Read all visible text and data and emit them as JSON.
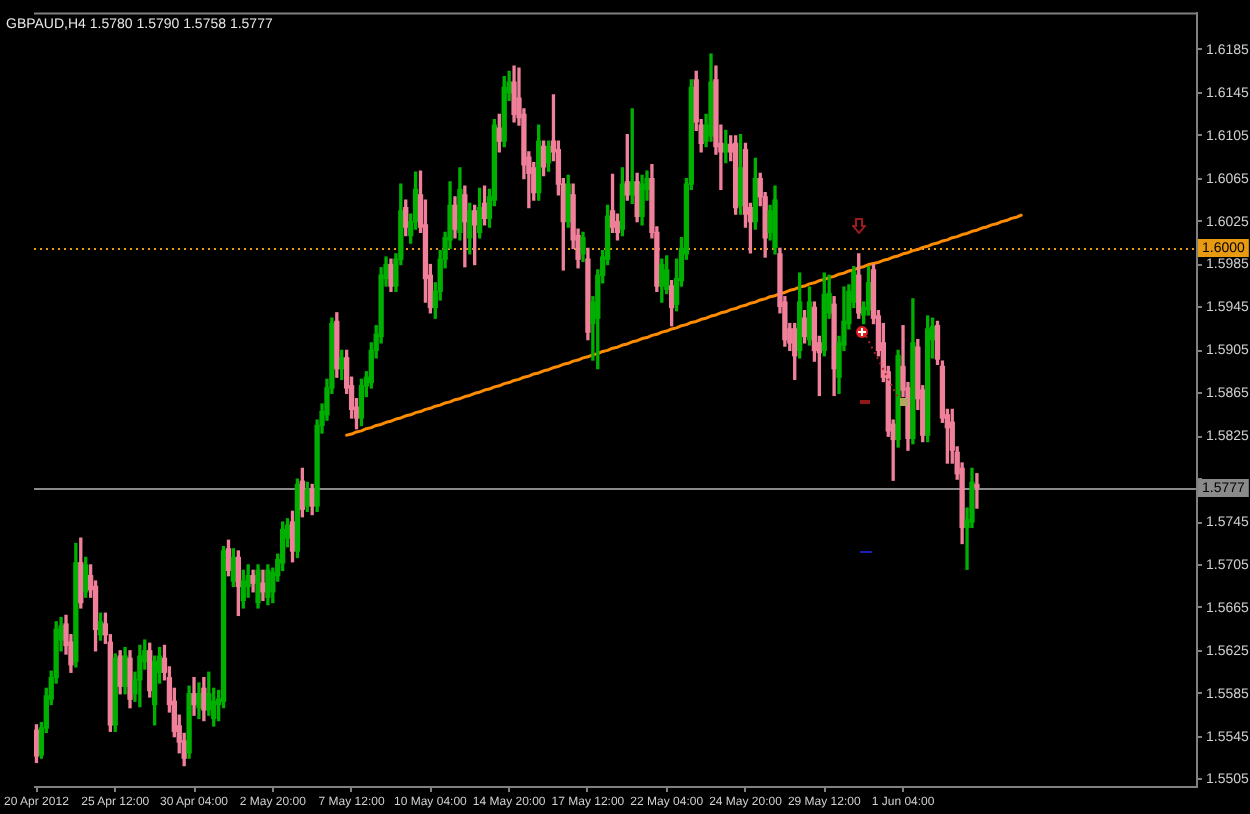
{
  "chart_data": {
    "type": "candlestick",
    "title": "GBPAUD,H4 1.5780 1.5790 1.5758 1.5777",
    "categories": [
      "20 Apr 2012",
      null,
      null,
      null,
      null,
      null,
      null,
      null,
      null,
      null,
      null,
      null,
      null,
      null,
      null,
      null,
      "25 Apr 12:00",
      null,
      null,
      null,
      null,
      null,
      null,
      null,
      null,
      null,
      null,
      null,
      null,
      null,
      null,
      null,
      "30 Apr 04:00",
      null,
      null,
      null,
      null,
      null,
      null,
      null,
      null,
      null,
      null,
      null,
      null,
      null,
      null,
      null,
      "2 May 20:00",
      null,
      null,
      null,
      null,
      null,
      null,
      null,
      null,
      null,
      null,
      null,
      null,
      null,
      null,
      null,
      "7 May 12:00",
      null,
      null,
      null,
      null,
      null,
      null,
      null,
      null,
      null,
      null,
      null,
      null,
      null,
      null,
      null,
      "10 May 04:00",
      null,
      null,
      null,
      null,
      null,
      null,
      null,
      null,
      null,
      null,
      null,
      null,
      null,
      null,
      null,
      "14 May 20:00",
      null,
      null,
      null,
      null,
      null,
      null,
      null,
      null,
      null,
      null,
      null,
      null,
      null,
      null,
      null,
      "17 May 12:00",
      null,
      null,
      null,
      null,
      null,
      null,
      null,
      null,
      null,
      null,
      null,
      null,
      null,
      null,
      null,
      "22 May 04:00",
      null,
      null,
      null,
      null,
      null,
      null,
      null,
      null,
      null,
      null,
      null,
      null,
      null,
      null,
      null,
      "24 May 20:00",
      null,
      null,
      null,
      null,
      null,
      null,
      null,
      null,
      null,
      null,
      null,
      null,
      null,
      null,
      null,
      "29 May 12:00",
      null,
      null,
      null,
      null,
      null,
      null,
      null,
      null,
      null,
      null,
      null,
      null,
      null,
      null,
      null,
      "1 Jun 04:00",
      null,
      null,
      null,
      null,
      null,
      null,
      null,
      null,
      null,
      null,
      null,
      null,
      null,
      null,
      null,
      null,
      null,
      null,
      null,
      null,
      null,
      null,
      null,
      null,
      null,
      null,
      null,
      null,
      null,
      null,
      null,
      null,
      null,
      null,
      null,
      null,
      null,
      null,
      null,
      null,
      null,
      null,
      null,
      null,
      null,
      null,
      null,
      null,
      null,
      null,
      null,
      null,
      null,
      null,
      null,
      null,
      null,
      null,
      null
    ],
    "ohlc": [
      [
        1.5551,
        1.5556,
        1.5521,
        1.5527
      ],
      [
        1.5528,
        1.5558,
        1.5525,
        1.5553
      ],
      [
        1.5553,
        1.559,
        1.5549,
        1.5583
      ],
      [
        1.558,
        1.5606,
        1.5575,
        1.56
      ],
      [
        1.56,
        1.5652,
        1.5595,
        1.5645
      ],
      [
        1.5635,
        1.5656,
        1.5625,
        1.5648
      ],
      [
        1.565,
        1.5658,
        1.5622,
        1.563
      ],
      [
        1.5633,
        1.564,
        1.5605,
        1.5612
      ],
      [
        1.5615,
        1.5725,
        1.561,
        1.5707
      ],
      [
        1.5707,
        1.573,
        1.5665,
        1.567
      ],
      [
        1.568,
        1.5712,
        1.5675,
        1.5705
      ],
      [
        1.5695,
        1.5705,
        1.5675,
        1.5682
      ],
      [
        1.5685,
        1.569,
        1.5625,
        1.5645
      ],
      [
        1.564,
        1.566,
        1.5635,
        1.5652
      ],
      [
        1.565,
        1.566,
        1.5632,
        1.564
      ],
      [
        1.5633,
        1.564,
        1.555,
        1.5556
      ],
      [
        1.5556,
        1.5622,
        1.555,
        1.5618
      ],
      [
        1.562,
        1.5625,
        1.5585,
        1.5592
      ],
      [
        1.5592,
        1.5628,
        1.5585,
        1.562
      ],
      [
        1.5618,
        1.5625,
        1.5572,
        1.558
      ],
      [
        1.5585,
        1.5605,
        1.5578,
        1.5598
      ],
      [
        1.5598,
        1.563,
        1.5573,
        1.562
      ],
      [
        1.5615,
        1.5635,
        1.5608,
        1.5625
      ],
      [
        1.5625,
        1.5632,
        1.5582,
        1.5588
      ],
      [
        1.5575,
        1.562,
        1.5556,
        1.5615
      ],
      [
        1.5605,
        1.5628,
        1.5595,
        1.562
      ],
      [
        1.5618,
        1.563,
        1.5598,
        1.5605
      ],
      [
        1.56,
        1.561,
        1.5568,
        1.5575
      ],
      [
        1.5578,
        1.559,
        1.5545,
        1.555
      ],
      [
        1.5555,
        1.5565,
        1.553,
        1.554
      ],
      [
        1.5541,
        1.5548,
        1.5518,
        1.5525
      ],
      [
        1.553,
        1.5592,
        1.5525,
        1.5585
      ],
      [
        1.5585,
        1.56,
        1.5565,
        1.5575
      ],
      [
        1.5572,
        1.5595,
        1.5562,
        1.5585
      ],
      [
        1.559,
        1.56,
        1.556,
        1.557
      ],
      [
        1.557,
        1.5605,
        1.5565,
        1.5585
      ],
      [
        1.5562,
        1.559,
        1.5555,
        1.5578
      ],
      [
        1.5575,
        1.5588,
        1.556,
        1.558
      ],
      [
        1.5578,
        1.5722,
        1.5572,
        1.5718
      ],
      [
        1.572,
        1.5728,
        1.5695,
        1.57
      ],
      [
        1.569,
        1.572,
        1.5685,
        1.5712
      ],
      [
        1.5712,
        1.5718,
        1.5658,
        1.5685
      ],
      [
        1.5672,
        1.57,
        1.5665,
        1.569
      ],
      [
        1.5685,
        1.5705,
        1.5675,
        1.5695
      ],
      [
        1.5695,
        1.57,
        1.568,
        1.5688
      ],
      [
        1.567,
        1.5705,
        1.5665,
        1.57
      ],
      [
        1.5688,
        1.57,
        1.5672,
        1.568
      ],
      [
        1.5675,
        1.5705,
        1.5668,
        1.57
      ],
      [
        1.568,
        1.5702,
        1.567,
        1.5698
      ],
      [
        1.5695,
        1.5715,
        1.569,
        1.571
      ],
      [
        1.5707,
        1.5745,
        1.57,
        1.5738
      ],
      [
        1.573,
        1.5748,
        1.5722,
        1.5742
      ],
      [
        1.5745,
        1.5755,
        1.5708,
        1.5718
      ],
      [
        1.5718,
        1.5785,
        1.5712,
        1.578
      ],
      [
        1.5783,
        1.5795,
        1.575,
        1.5757
      ],
      [
        1.576,
        1.5782,
        1.5755,
        1.5775
      ],
      [
        1.5775,
        1.578,
        1.5752,
        1.576
      ],
      [
        1.576,
        1.584,
        1.5755,
        1.5835
      ],
      [
        1.5835,
        1.5855,
        1.5828,
        1.5848
      ],
      [
        1.5845,
        1.5878,
        1.584,
        1.587
      ],
      [
        1.587,
        1.5935,
        1.5865,
        1.593
      ],
      [
        1.5932,
        1.594,
        1.588,
        1.5888
      ],
      [
        1.5888,
        1.5905,
        1.5878,
        1.5898
      ],
      [
        1.5898,
        1.5905,
        1.5865,
        1.587
      ],
      [
        1.5872,
        1.588,
        1.5842,
        1.585
      ],
      [
        1.5852,
        1.586,
        1.5832,
        1.5842
      ],
      [
        1.5842,
        1.5878,
        1.5835,
        1.5872
      ],
      [
        1.5872,
        1.5885,
        1.5862,
        1.588
      ],
      [
        1.5875,
        1.5912,
        1.587,
        1.5905
      ],
      [
        1.5905,
        1.5928,
        1.5898,
        1.592
      ],
      [
        1.5918,
        1.5982,
        1.5912,
        1.5975
      ],
      [
        1.5972,
        1.5992,
        1.5965,
        1.5985
      ],
      [
        1.5985,
        1.599,
        1.596,
        1.5965
      ],
      [
        1.5965,
        1.5995,
        1.596,
        1.599
      ],
      [
        1.599,
        1.606,
        1.5985,
        1.6035
      ],
      [
        1.6038,
        1.6045,
        1.6012,
        1.602
      ],
      [
        1.6012,
        1.6032,
        1.6005,
        1.6025
      ],
      [
        1.6025,
        1.6071,
        1.6018,
        1.6055
      ],
      [
        1.605,
        1.6072,
        1.6015,
        1.602
      ],
      [
        1.6022,
        1.6045,
        1.595,
        1.5972
      ],
      [
        1.5975,
        1.5985,
        1.594,
        1.5945
      ],
      [
        1.5945,
        1.5968,
        1.5935,
        1.596
      ],
      [
        1.596,
        1.5998,
        1.5952,
        1.599
      ],
      [
        1.599,
        1.6015,
        1.5982,
        1.601
      ],
      [
        1.6008,
        1.6062,
        1.6,
        1.604
      ],
      [
        1.604,
        1.6048,
        1.601,
        1.6018
      ],
      [
        1.6015,
        1.6075,
        1.6008,
        1.6055
      ],
      [
        1.605,
        1.6058,
        1.5983,
        1.6025
      ],
      [
        1.601,
        1.6042,
        1.5995,
        1.6035
      ],
      [
        1.6035,
        1.604,
        1.5985,
        1.6022
      ],
      [
        1.6015,
        1.6056,
        1.601,
        1.6038
      ],
      [
        1.6042,
        1.6058,
        1.6022,
        1.6028
      ],
      [
        1.6028,
        1.6055,
        1.602,
        1.6048
      ],
      [
        1.6045,
        1.612,
        1.604,
        1.6115
      ],
      [
        1.6112,
        1.6125,
        1.609,
        1.61
      ],
      [
        1.61,
        1.616,
        1.6095,
        1.615
      ],
      [
        1.6145,
        1.6165,
        1.6138,
        1.6155
      ],
      [
        1.6155,
        1.617,
        1.6118,
        1.6125
      ],
      [
        1.614,
        1.6168,
        1.6115,
        1.6122
      ],
      [
        1.6125,
        1.613,
        1.6065,
        1.6078
      ],
      [
        1.6085,
        1.609,
        1.6038,
        1.607
      ],
      [
        1.6075,
        1.608,
        1.6045,
        1.6052
      ],
      [
        1.6052,
        1.6115,
        1.6045,
        1.61
      ],
      [
        1.6095,
        1.61,
        1.6068,
        1.6076
      ],
      [
        1.608,
        1.61,
        1.6072,
        1.6095
      ],
      [
        1.61,
        1.6143,
        1.6082,
        1.609
      ],
      [
        1.6092,
        1.61,
        1.605,
        1.606
      ],
      [
        1.606,
        1.6065,
        1.598,
        1.6025
      ],
      [
        1.6025,
        1.6068,
        1.602,
        1.606
      ],
      [
        1.605,
        1.606,
        1.6,
        1.6008
      ],
      [
        1.6012,
        1.6018,
        1.5982,
        1.599
      ],
      [
        1.5995,
        1.6015,
        1.5988,
        1.601
      ],
      [
        1.599,
        1.6,
        1.5915,
        1.5922
      ],
      [
        1.593,
        1.5955,
        1.5896,
        1.595
      ],
      [
        1.5935,
        1.598,
        1.5888,
        1.5975
      ],
      [
        1.5975,
        1.5998,
        1.5968,
        1.5992
      ],
      [
        1.599,
        1.604,
        1.5985,
        1.603
      ],
      [
        1.6035,
        1.6069,
        1.6015,
        1.602
      ],
      [
        1.6025,
        1.6032,
        1.6008,
        1.6015
      ],
      [
        1.6018,
        1.6075,
        1.6012,
        1.606
      ],
      [
        1.6062,
        1.6106,
        1.6045,
        1.605
      ],
      [
        1.605,
        1.613,
        1.6042,
        1.6062
      ],
      [
        1.6062,
        1.607,
        1.6025,
        1.603
      ],
      [
        1.603,
        1.6068,
        1.6022,
        1.606
      ],
      [
        1.6055,
        1.6072,
        1.6045,
        1.6065
      ],
      [
        1.6065,
        1.6078,
        1.601,
        1.6015
      ],
      [
        1.6015,
        1.602,
        1.596,
        1.5965
      ],
      [
        1.5965,
        1.599,
        1.595,
        1.5985
      ],
      [
        1.5962,
        1.5993,
        1.5958,
        1.598
      ],
      [
        1.5965,
        1.597,
        1.5928,
        1.5945
      ],
      [
        1.5948,
        1.599,
        1.5942,
        1.5972
      ],
      [
        1.597,
        1.601,
        1.5965,
        1.6
      ],
      [
        1.5995,
        1.6065,
        1.599,
        1.606
      ],
      [
        1.606,
        1.6157,
        1.6055,
        1.615
      ],
      [
        1.6157,
        1.6165,
        1.611,
        1.6118
      ],
      [
        1.6115,
        1.612,
        1.609,
        1.6098
      ],
      [
        1.61,
        1.6125,
        1.6095,
        1.6115
      ],
      [
        1.6105,
        1.6181,
        1.61,
        1.6155
      ],
      [
        1.6157,
        1.617,
        1.6088,
        1.6095
      ],
      [
        1.6098,
        1.6115,
        1.6055,
        1.609
      ],
      [
        1.609,
        1.611,
        1.608,
        1.6097
      ],
      [
        1.6097,
        1.6105,
        1.6082,
        1.609
      ],
      [
        1.6098,
        1.6105,
        1.6032,
        1.6038
      ],
      [
        1.604,
        1.6106,
        1.6032,
        1.6075
      ],
      [
        1.6092,
        1.6098,
        1.602,
        1.6032
      ],
      [
        1.6038,
        1.6042,
        1.5996,
        1.6025
      ],
      [
        1.6025,
        1.6084,
        1.6018,
        1.6065
      ],
      [
        1.6065,
        1.607,
        1.604,
        1.6048
      ],
      [
        1.6048,
        1.6052,
        1.5992,
        1.601
      ],
      [
        1.6015,
        1.604,
        1.6008,
        1.6035
      ],
      [
        1.6001,
        1.6058,
        1.5995,
        1.6045
      ],
      [
        1.5995,
        1.6,
        1.594,
        1.5946
      ],
      [
        1.595,
        1.5955,
        1.5909,
        1.5915
      ],
      [
        1.5925,
        1.593,
        1.5905,
        1.5912
      ],
      [
        1.5925,
        1.593,
        1.5878,
        1.59
      ],
      [
        1.5905,
        1.5977,
        1.5898,
        1.595
      ],
      [
        1.5935,
        1.5942,
        1.5912,
        1.5918
      ],
      [
        1.5915,
        1.5964,
        1.591,
        1.595
      ],
      [
        1.5945,
        1.595,
        1.5895,
        1.5905
      ],
      [
        1.5912,
        1.5918,
        1.5863,
        1.5903
      ],
      [
        1.5905,
        1.5977,
        1.59,
        1.5957
      ],
      [
        1.594,
        1.5975,
        1.5935,
        1.5958
      ],
      [
        1.5948,
        1.5955,
        1.5863,
        1.5888
      ],
      [
        1.588,
        1.5918,
        1.5865,
        1.5912
      ],
      [
        1.591,
        1.5964,
        1.5905,
        1.5932
      ],
      [
        1.593,
        1.5966,
        1.5925,
        1.596
      ],
      [
        1.595,
        1.5983,
        1.5945,
        1.5978
      ],
      [
        1.5975,
        1.5995,
        1.5935,
        1.594
      ],
      [
        1.5938,
        1.595,
        1.593,
        1.5945
      ],
      [
        1.5943,
        1.5983,
        1.5938,
        1.5968
      ],
      [
        1.598,
        1.5985,
        1.593,
        1.5935
      ],
      [
        1.5937,
        1.5942,
        1.59,
        1.5905
      ],
      [
        1.5912,
        1.593,
        1.5876,
        1.588
      ],
      [
        1.5885,
        1.589,
        1.5825,
        1.583
      ],
      [
        1.5836,
        1.584,
        1.5784,
        1.5822
      ],
      [
        1.5822,
        1.5905,
        1.5815,
        1.59
      ],
      [
        1.589,
        1.5928,
        1.5862,
        1.5868
      ],
      [
        1.587,
        1.5875,
        1.5812,
        1.5823
      ],
      [
        1.5823,
        1.5953,
        1.5818,
        1.5912
      ],
      [
        1.5908,
        1.5915,
        1.585,
        1.586
      ],
      [
        1.5868,
        1.5872,
        1.582,
        1.5826
      ],
      [
        1.5826,
        1.5937,
        1.582,
        1.5925
      ],
      [
        1.5915,
        1.5935,
        1.5898,
        1.5927
      ],
      [
        1.5928,
        1.5932,
        1.5892,
        1.5897
      ],
      [
        1.589,
        1.5895,
        1.5838,
        1.5842
      ],
      [
        1.5845,
        1.585,
        1.58,
        1.5833
      ],
      [
        1.5838,
        1.585,
        1.58,
        1.5812
      ],
      [
        1.581,
        1.5815,
        1.5785,
        1.579
      ],
      [
        1.5795,
        1.58,
        1.5725,
        1.574
      ],
      [
        1.574,
        1.5758,
        1.5701,
        1.5747
      ],
      [
        1.5745,
        1.5795,
        1.574,
        1.5782
      ],
      [
        1.578,
        1.579,
        1.5758,
        1.5777
      ],
      null,
      null,
      null,
      null,
      null,
      null,
      null,
      null,
      null,
      null,
      null,
      null,
      null,
      null,
      null,
      null,
      null,
      null,
      null,
      null,
      null,
      null,
      null,
      null,
      null,
      null,
      null,
      null,
      null,
      null,
      null,
      null,
      null,
      null,
      null,
      null,
      null,
      null,
      null,
      null,
      null,
      null,
      null,
      null
    ],
    "colors": [
      "#f0809a",
      "#00b000",
      "#00b000",
      "#00b000",
      "#00b000",
      "#00b000",
      "#f0809a",
      "#f0809a",
      "#00b000",
      "#f0809a",
      "#00b000",
      "#f0809a",
      "#f0809a",
      "#00b000",
      "#f0809a",
      "#f0809a",
      "#00b000",
      "#f0809a",
      "#00b000",
      "#f0809a",
      "#00b000",
      "#00b000",
      "#00b000",
      "#f0809a",
      "#00b000",
      "#00b000",
      "#f0809a",
      "#f0809a",
      "#f0809a",
      "#f0809a",
      "#f0809a",
      "#00b000",
      "#f0809a",
      "#00b000",
      "#f0809a",
      "#00b000",
      "#00b000",
      "#00b000",
      "#00b000",
      "#f0809a",
      "#00b000",
      "#f0809a",
      "#00b000",
      "#00b000",
      "#f0809a",
      "#00b000",
      "#f0809a",
      "#00b000",
      "#00b000",
      "#00b000",
      "#00b000",
      "#00b000",
      "#f0809a",
      "#00b000",
      "#f0809a",
      "#00b000",
      "#f0809a",
      "#00b000",
      "#00b000",
      "#00b000",
      "#00b000",
      "#f0809a",
      "#00b000",
      "#f0809a",
      "#f0809a",
      "#f0809a",
      "#00b000",
      "#00b000",
      "#00b000",
      "#00b000",
      "#00b000",
      "#00b000",
      "#f0809a",
      "#00b000",
      "#00b000",
      "#f0809a",
      "#00b000",
      "#00b000",
      "#f0809a",
      "#f0809a",
      "#f0809a",
      "#00b000",
      "#00b000",
      "#00b000",
      "#00b000",
      "#f0809a",
      "#00b000",
      "#f0809a",
      "#00b000",
      "#f0809a",
      "#00b000",
      "#f0809a",
      "#00b000",
      "#00b000",
      "#f0809a",
      "#00b000",
      "#00b000",
      "#f0809a",
      "#f0809a",
      "#f0809a",
      "#f0809a",
      "#f0809a",
      "#00b000",
      "#f0809a",
      "#00b000",
      "#f0809a",
      "#f0809a",
      "#f0809a",
      "#00b000",
      "#f0809a",
      "#f0809a",
      "#00b000",
      "#f0809a",
      "#00b000",
      "#00b000",
      "#00b000",
      "#00b000",
      "#f0809a",
      "#f0809a",
      "#00b000",
      "#f0809a",
      "#00b000",
      "#f0809a",
      "#00b000",
      "#00b000",
      "#f0809a",
      "#f0809a",
      "#00b000",
      "#00b000",
      "#f0809a",
      "#00b000",
      "#00b000",
      "#00b000",
      "#00b000",
      "#f0809a",
      "#f0809a",
      "#00b000",
      "#00b000",
      "#f0809a",
      "#f0809a",
      "#00b000",
      "#f0809a",
      "#f0809a",
      "#00b000",
      "#f0809a",
      "#f0809a",
      "#00b000",
      "#f0809a",
      "#f0809a",
      "#00b000",
      "#00b000",
      "#f0809a",
      "#f0809a",
      "#f0809a",
      "#f0809a",
      "#00b000",
      "#f0809a",
      "#00b000",
      "#f0809a",
      "#f0809a",
      "#00b000",
      "#00b000",
      "#f0809a",
      "#00b000",
      "#00b000",
      "#00b000",
      "#00b000",
      "#f0809a",
      "#00b000",
      "#00b000",
      "#f0809a",
      "#f0809a",
      "#f0809a",
      "#f0809a",
      "#f0809a",
      "#00b000",
      "#f0809a",
      "#f0809a",
      "#00b000",
      "#f0809a",
      "#f0809a",
      "#00b000",
      "#00b000",
      "#f0809a",
      "#f0809a",
      "#f0809a",
      "#f0809a",
      "#f0809a",
      "#f0809a",
      "#00b000",
      "#00b000",
      "#f0809a",
      null,
      null,
      null,
      null,
      null,
      null,
      null,
      null,
      null,
      null,
      null,
      null,
      null,
      null,
      null,
      null,
      null,
      null,
      null,
      null,
      null,
      null,
      null,
      null,
      null,
      null,
      null,
      null,
      null,
      null,
      null,
      null,
      null,
      null,
      null,
      null,
      null,
      null,
      null,
      null,
      null,
      null,
      null,
      null
    ],
    "series": [
      {
        "type": "line",
        "color": "#ff8c00",
        "values": [
          null,
          null,
          null,
          null,
          null,
          null,
          null,
          null,
          null,
          null,
          null,
          null,
          null,
          null,
          null,
          null,
          null,
          null,
          null,
          null,
          null,
          null,
          null,
          null,
          null,
          null,
          null,
          null,
          null,
          null,
          null,
          null,
          null,
          null,
          null,
          null,
          null,
          null,
          null,
          null,
          null,
          null,
          null,
          null,
          null,
          null,
          null,
          null,
          null,
          null,
          null,
          null,
          null,
          null,
          null,
          null,
          null,
          null,
          null,
          null,
          null,
          null,
          null,
          1.5826,
          1.5827,
          1.5829,
          1.583,
          1.5832,
          1.5833,
          1.5835,
          1.5836,
          1.5838,
          1.5839,
          1.5841,
          1.5842,
          1.5844,
          1.5845,
          1.5847,
          1.5848,
          1.585,
          1.5851,
          1.5853,
          1.5854,
          1.5856,
          1.5857,
          1.5859,
          1.586,
          1.5862,
          1.5863,
          1.5865,
          1.5866,
          1.5868,
          1.5869,
          1.5871,
          1.5872,
          1.5874,
          1.5875,
          1.5877,
          1.5878,
          1.588,
          1.5881,
          1.5883,
          1.5884,
          1.5886,
          1.5887,
          1.5889,
          1.589,
          1.5892,
          1.5893,
          1.5895,
          1.5896,
          1.5898,
          1.5899,
          1.5901,
          1.5902,
          1.5904,
          1.5905,
          1.5907,
          1.5908,
          1.591,
          1.5911,
          1.5913,
          1.5914,
          1.5916,
          1.5917,
          1.5919,
          1.592,
          1.5922,
          1.5923,
          1.5925,
          1.5926,
          1.5928,
          1.5929,
          1.5931,
          1.5932,
          1.5934,
          1.5935,
          1.5937,
          1.5938,
          1.594,
          1.5941,
          1.5943,
          1.5944,
          1.5946,
          1.5947,
          1.5949,
          1.595,
          1.5952,
          1.5953,
          1.5955,
          1.5956,
          1.5958,
          1.5959,
          1.5961,
          1.5962,
          1.5964,
          1.5965,
          1.5967,
          1.5968,
          1.597,
          1.5971,
          1.5973,
          1.5974,
          1.5976,
          1.5977,
          1.5979,
          1.598,
          1.5982,
          1.5983,
          1.5985,
          1.5986,
          1.5987,
          1.5989,
          1.599,
          1.5992,
          1.5993,
          1.5995,
          1.5996,
          1.5998,
          1.5999,
          1.6001,
          1.6002,
          1.6004,
          1.6005,
          1.6007,
          1.6008,
          1.601,
          1.6011,
          1.6013,
          1.6014,
          1.6016,
          1.6017,
          1.6019,
          1.602,
          1.6022,
          1.6023,
          1.6025,
          1.6026,
          1.6028,
          1.6029,
          1.6031,
          null,
          null,
          null,
          null,
          null,
          null,
          null,
          null,
          null,
          null,
          null,
          null,
          null,
          null,
          null,
          null,
          null,
          null,
          null,
          null,
          null,
          null,
          null,
          null,
          null,
          null,
          null,
          null,
          null,
          null,
          null,
          null,
          null,
          null,
          null
        ]
      }
    ],
    "ylim": [
      1.5499,
      1.622
    ],
    "yticks": [
      1.5505,
      1.5545,
      1.5585,
      1.5625,
      1.5665,
      1.5705,
      1.5745,
      {
        "value": 1.5785,
        "label": null
      },
      1.5825,
      1.5865,
      1.5905,
      1.5945,
      1.5985,
      1.6025,
      1.6065,
      1.6105,
      1.6145,
      1.6185
    ],
    "ref_lines": [
      {
        "axis": "y",
        "value": 1.6,
        "label": "1.6000",
        "color": "#e89a10",
        "line_style": "dotted"
      },
      {
        "axis": "y",
        "value": 1.5777,
        "label": "1.5777",
        "color": "#8a8a8a",
        "line_style": "solid"
      }
    ]
  }
}
